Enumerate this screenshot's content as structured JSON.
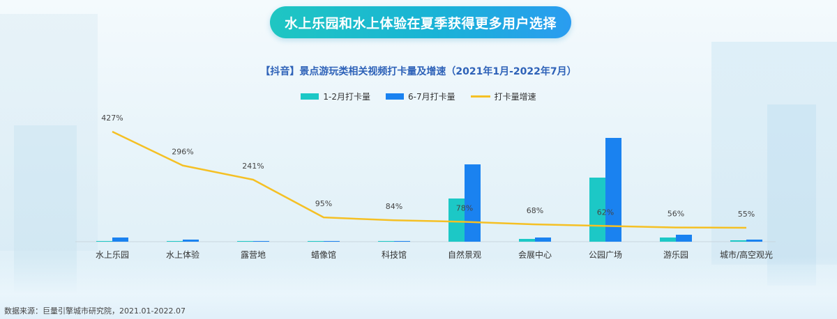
{
  "banner": {
    "title": "水上乐园和水上体验在夏季获得更多用户选择"
  },
  "source": "数据来源：巨量引擎城市研究院，2021.01-2022.07",
  "chart_data": {
    "type": "bar",
    "title": "【抖音】景点游玩类相关视频打卡量及增速（2021年1月-2022年7月）",
    "categories": [
      "水上乐园",
      "水上体验",
      "露营地",
      "蜡像馆",
      "科技馆",
      "自然景观",
      "会展中心",
      "公园广场",
      "游乐园",
      "城市/高空观光"
    ],
    "series": [
      {
        "name": "1-2月打卡量",
        "kind": "bar",
        "color": "#1cc8c6",
        "values": [
          1,
          0.6,
          0.4,
          0.1,
          0.3,
          62,
          4,
          92,
          6,
          2
        ]
      },
      {
        "name": "6-7月打卡量",
        "kind": "bar",
        "color": "#1a82f0",
        "values": [
          6,
          3,
          1,
          0.3,
          0.6,
          111,
          6,
          149,
          10,
          3
        ]
      },
      {
        "name": "打卡量增速",
        "kind": "line",
        "color": "#f5c024",
        "values": [
          427,
          296,
          241,
          95,
          84,
          78,
          68,
          62,
          56,
          55
        ],
        "labels": [
          "427%",
          "296%",
          "241%",
          "95%",
          "84%",
          "78%",
          "68%",
          "62%",
          "56%",
          "55%"
        ]
      }
    ],
    "bar_ylim": [
      0,
      165
    ],
    "line_ylim": [
      0,
      450
    ],
    "legend_position": "top-center",
    "grid": false
  }
}
